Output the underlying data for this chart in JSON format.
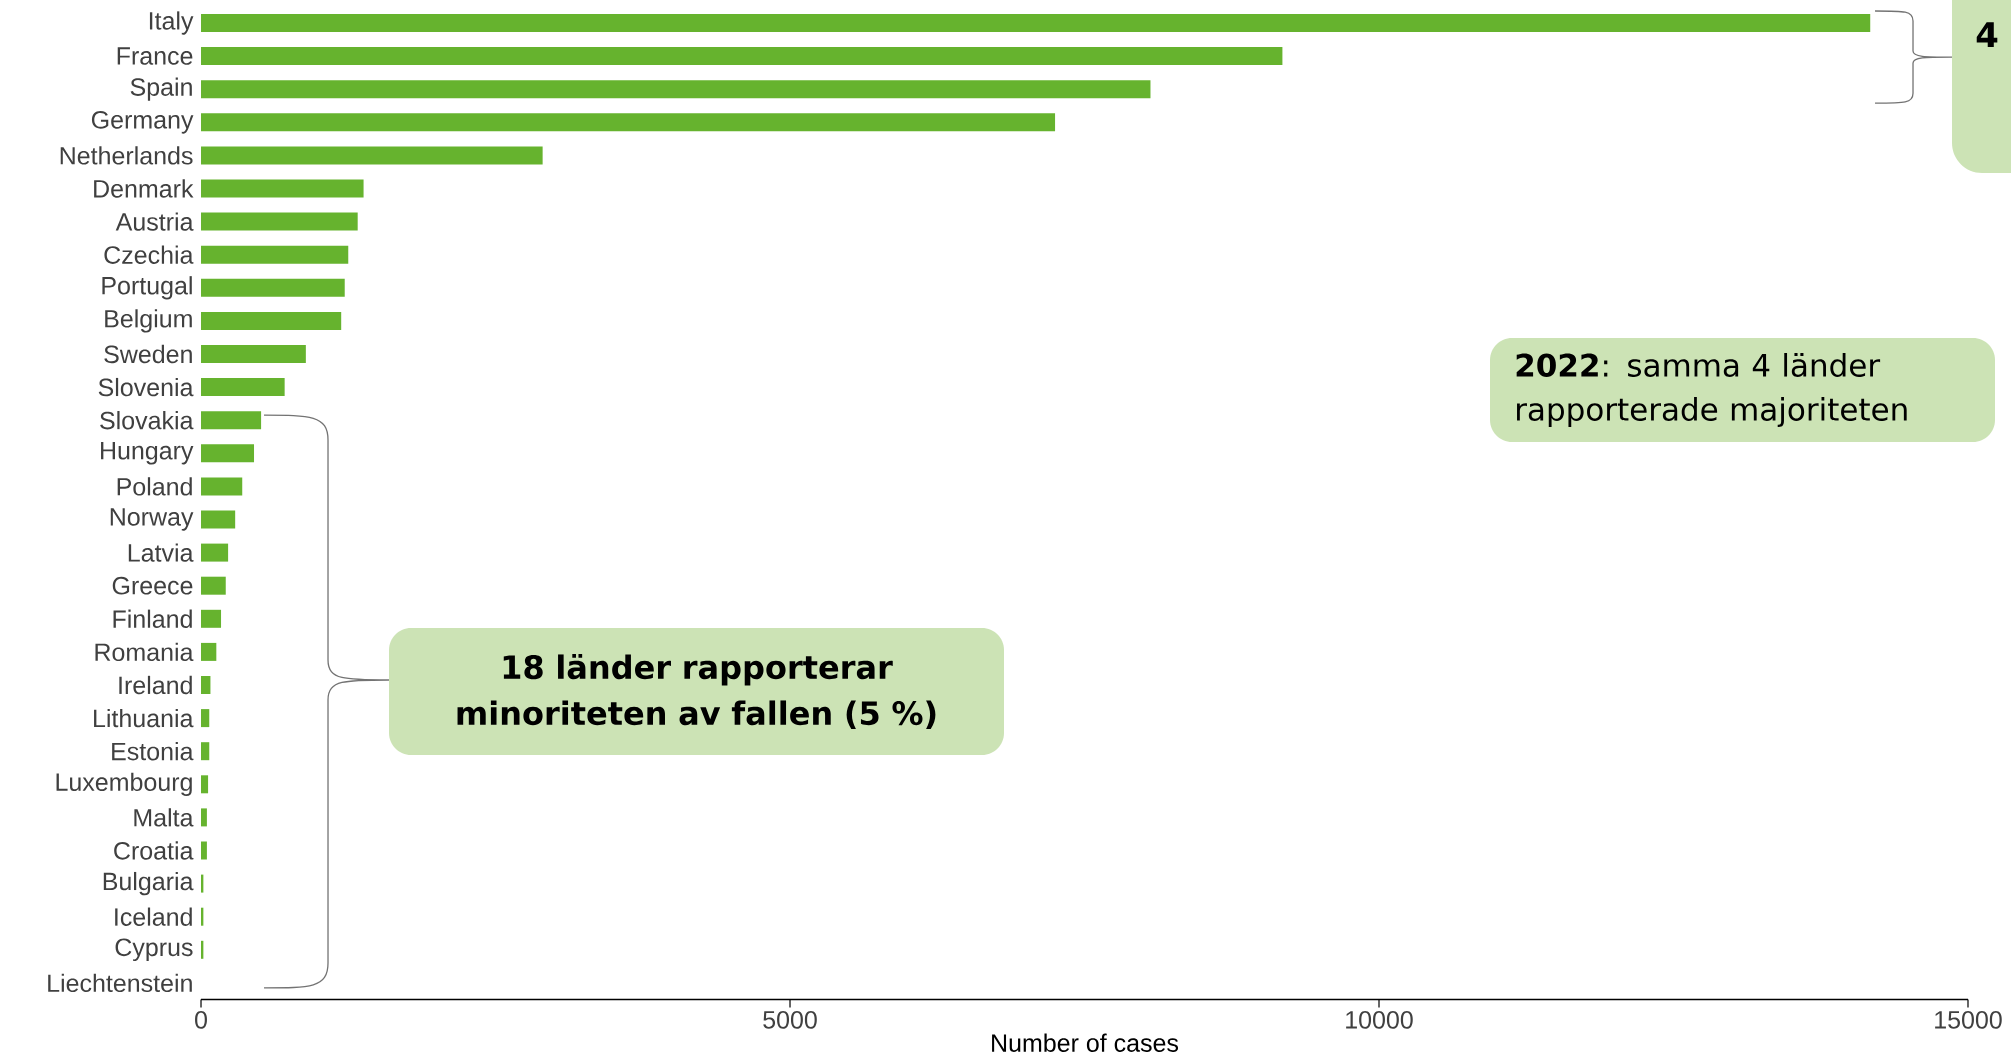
{
  "chart_data": {
    "type": "bar",
    "orientation": "horizontal",
    "categories": [
      "Italy",
      "France",
      "Spain",
      "Germany",
      "Netherlands",
      "Denmark",
      "Austria",
      "Czechia",
      "Portugal",
      "Belgium",
      "Sweden",
      "Slovenia",
      "Slovakia",
      "Hungary",
      "Poland",
      "Norway",
      "Latvia",
      "Greece",
      "Finland",
      "Romania",
      "Ireland",
      "Lithuania",
      "Estonia",
      "Luxembourg",
      "Malta",
      "Croatia",
      "Bulgaria",
      "Iceland",
      "Cyprus",
      "Liechtenstein"
    ],
    "values": [
      14170,
      9180,
      8060,
      7250,
      2900,
      1380,
      1330,
      1250,
      1220,
      1190,
      890,
      710,
      510,
      450,
      350,
      290,
      230,
      210,
      170,
      130,
      80,
      70,
      70,
      60,
      50,
      50,
      20,
      20,
      20,
      0
    ],
    "color": "#66b32e",
    "xlabel": "Number of cases",
    "xlim": [
      0,
      15000
    ],
    "xticks": [
      0,
      5000,
      10000,
      15000
    ],
    "annotations": [
      "4",
      "18 länder rapporterar minoriteten av fallen (5 %)",
      "**2022**: samma 4 länder rapporterade majoriteten"
    ]
  }
}
